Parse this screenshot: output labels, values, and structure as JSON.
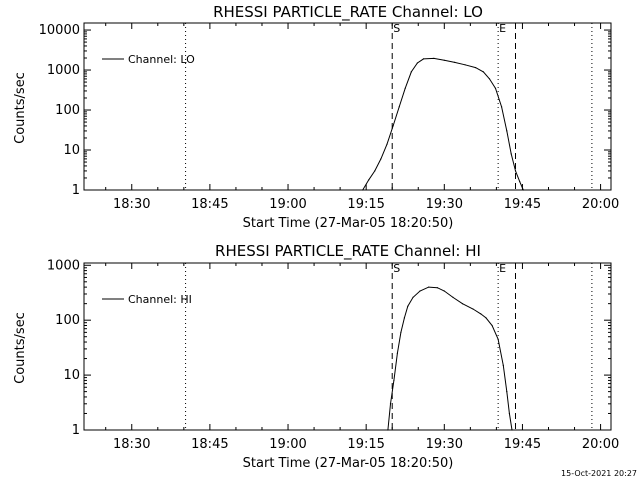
{
  "footer": {
    "timestamp": "15-Oct-2021 20:27"
  },
  "chart_data": [
    {
      "type": "line",
      "title": "RHESSI PARTICLE_RATE Channel: LO",
      "xlabel": "Start Time (27-Mar-05 18:20:50)",
      "ylabel": "Counts/sec",
      "y_scale": "log",
      "x_ticks": [
        "18:30",
        "18:45",
        "19:00",
        "19:15",
        "19:30",
        "19:45",
        "20:00"
      ],
      "y_ticks": [
        "1",
        "10",
        "100",
        "1000",
        "10000"
      ],
      "xlim": [
        "18:20:50",
        "20:02:00"
      ],
      "ylim": [
        1,
        15000
      ],
      "legend": "top-left",
      "series": [
        {
          "name": "Channel: LO",
          "x": [
            "19:14:20",
            "19:15:30",
            "19:16:40",
            "19:17:50",
            "19:19:00",
            "19:20:10",
            "19:21:20",
            "19:22:30",
            "19:23:40",
            "19:24:50",
            "19:26:00",
            "19:28:00",
            "19:30:00",
            "19:32:00",
            "19:34:00",
            "19:36:00",
            "19:37:30",
            "19:38:40",
            "19:39:50",
            "19:41:00",
            "19:42:00",
            "19:42:50",
            "19:43:40",
            "19:44:30",
            "19:45:10"
          ],
          "y": [
            1,
            1.8,
            3,
            6,
            14,
            40,
            120,
            350,
            900,
            1500,
            1900,
            1950,
            1750,
            1550,
            1350,
            1150,
            900,
            600,
            350,
            120,
            30,
            8,
            3,
            1.6,
            1
          ]
        }
      ],
      "markers": [
        {
          "label": "",
          "time": "18:20:50",
          "style": "dotted"
        },
        {
          "label": "",
          "time": "18:40:20",
          "style": "dotted"
        },
        {
          "label": "S",
          "time": "19:20:00",
          "style": "dashed"
        },
        {
          "label": "E",
          "time": "19:40:20",
          "style": "dotted"
        },
        {
          "label": "",
          "time": "19:43:40",
          "style": "dashed"
        },
        {
          "label": "",
          "time": "19:58:20",
          "style": "dotted"
        }
      ]
    },
    {
      "type": "line",
      "title": "RHESSI PARTICLE_RATE Channel: HI",
      "xlabel": "Start Time (27-Mar-05 18:20:50)",
      "ylabel": "Counts/sec",
      "y_scale": "log",
      "x_ticks": [
        "18:30",
        "18:45",
        "19:00",
        "19:15",
        "19:30",
        "19:45",
        "20:00"
      ],
      "y_ticks": [
        "1",
        "10",
        "100",
        "1000"
      ],
      "xlim": [
        "18:20:50",
        "20:02:00"
      ],
      "ylim": [
        1,
        1100
      ],
      "legend": "top-left",
      "series": [
        {
          "name": "Channel: HI",
          "x": [
            "19:19:10",
            "19:19:40",
            "19:20:20",
            "19:21:00",
            "19:21:40",
            "19:22:20",
            "19:23:00",
            "19:24:00",
            "19:25:20",
            "19:27:00",
            "19:28:40",
            "19:30:00",
            "19:31:40",
            "19:33:30",
            "19:35:30",
            "19:37:00",
            "19:38:00",
            "19:39:10",
            "19:40:20",
            "19:41:20",
            "19:42:00",
            "19:42:30",
            "19:43:00"
          ],
          "y": [
            1,
            3,
            8,
            25,
            60,
            110,
            180,
            260,
            340,
            400,
            390,
            340,
            260,
            200,
            160,
            130,
            110,
            80,
            45,
            15,
            5,
            2,
            1
          ]
        }
      ],
      "markers": [
        {
          "label": "",
          "time": "18:20:50",
          "style": "dotted"
        },
        {
          "label": "",
          "time": "18:40:20",
          "style": "dotted"
        },
        {
          "label": "S",
          "time": "19:20:00",
          "style": "dashed"
        },
        {
          "label": "E",
          "time": "19:40:20",
          "style": "dotted"
        },
        {
          "label": "",
          "time": "19:43:40",
          "style": "dashed"
        },
        {
          "label": "",
          "time": "19:58:20",
          "style": "dotted"
        }
      ]
    }
  ]
}
